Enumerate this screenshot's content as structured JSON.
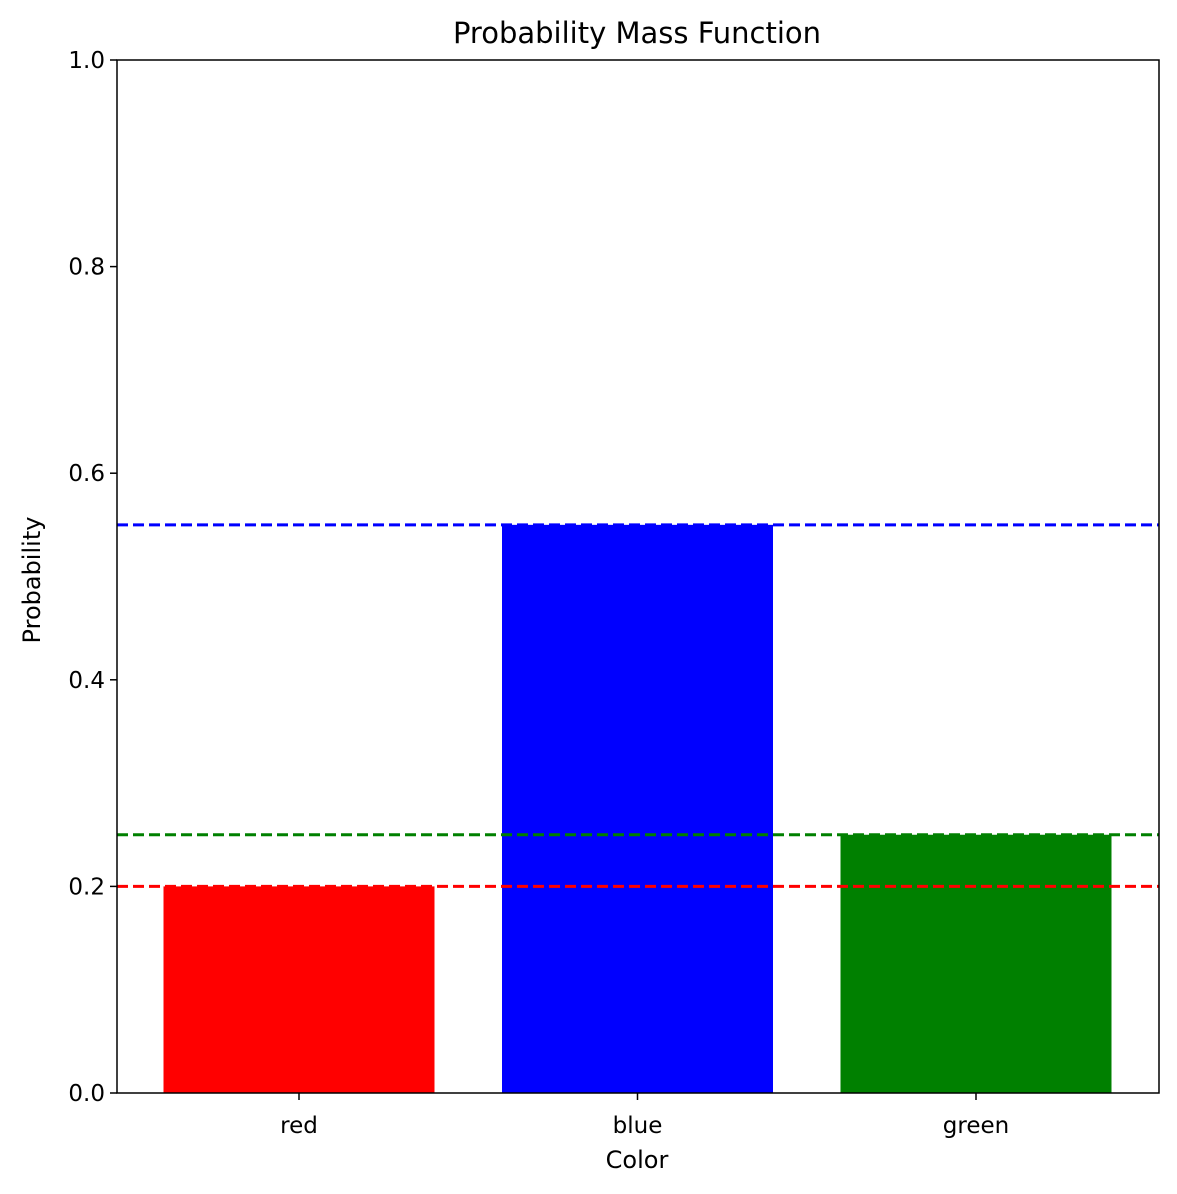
{
  "chart_data": {
    "type": "bar",
    "title": "Probability Mass Function",
    "xlabel": "Color",
    "ylabel": "Probability",
    "categories": [
      "red",
      "blue",
      "green"
    ],
    "values": [
      0.2,
      0.55,
      0.25
    ],
    "bar_colors": [
      "#ff0000",
      "#0000ff",
      "#008000"
    ],
    "ylim": [
      0,
      1.0
    ],
    "yticks": [
      "0.0",
      "0.2",
      "0.4",
      "0.6",
      "0.8",
      "1.0"
    ],
    "reference_lines": [
      {
        "value": 0.2,
        "color": "#ff0000",
        "style": "dashed"
      },
      {
        "value": 0.55,
        "color": "#0000ff",
        "style": "dashed"
      },
      {
        "value": 0.25,
        "color": "#008000",
        "style": "dashed"
      }
    ],
    "grid": false,
    "legend": "none"
  }
}
